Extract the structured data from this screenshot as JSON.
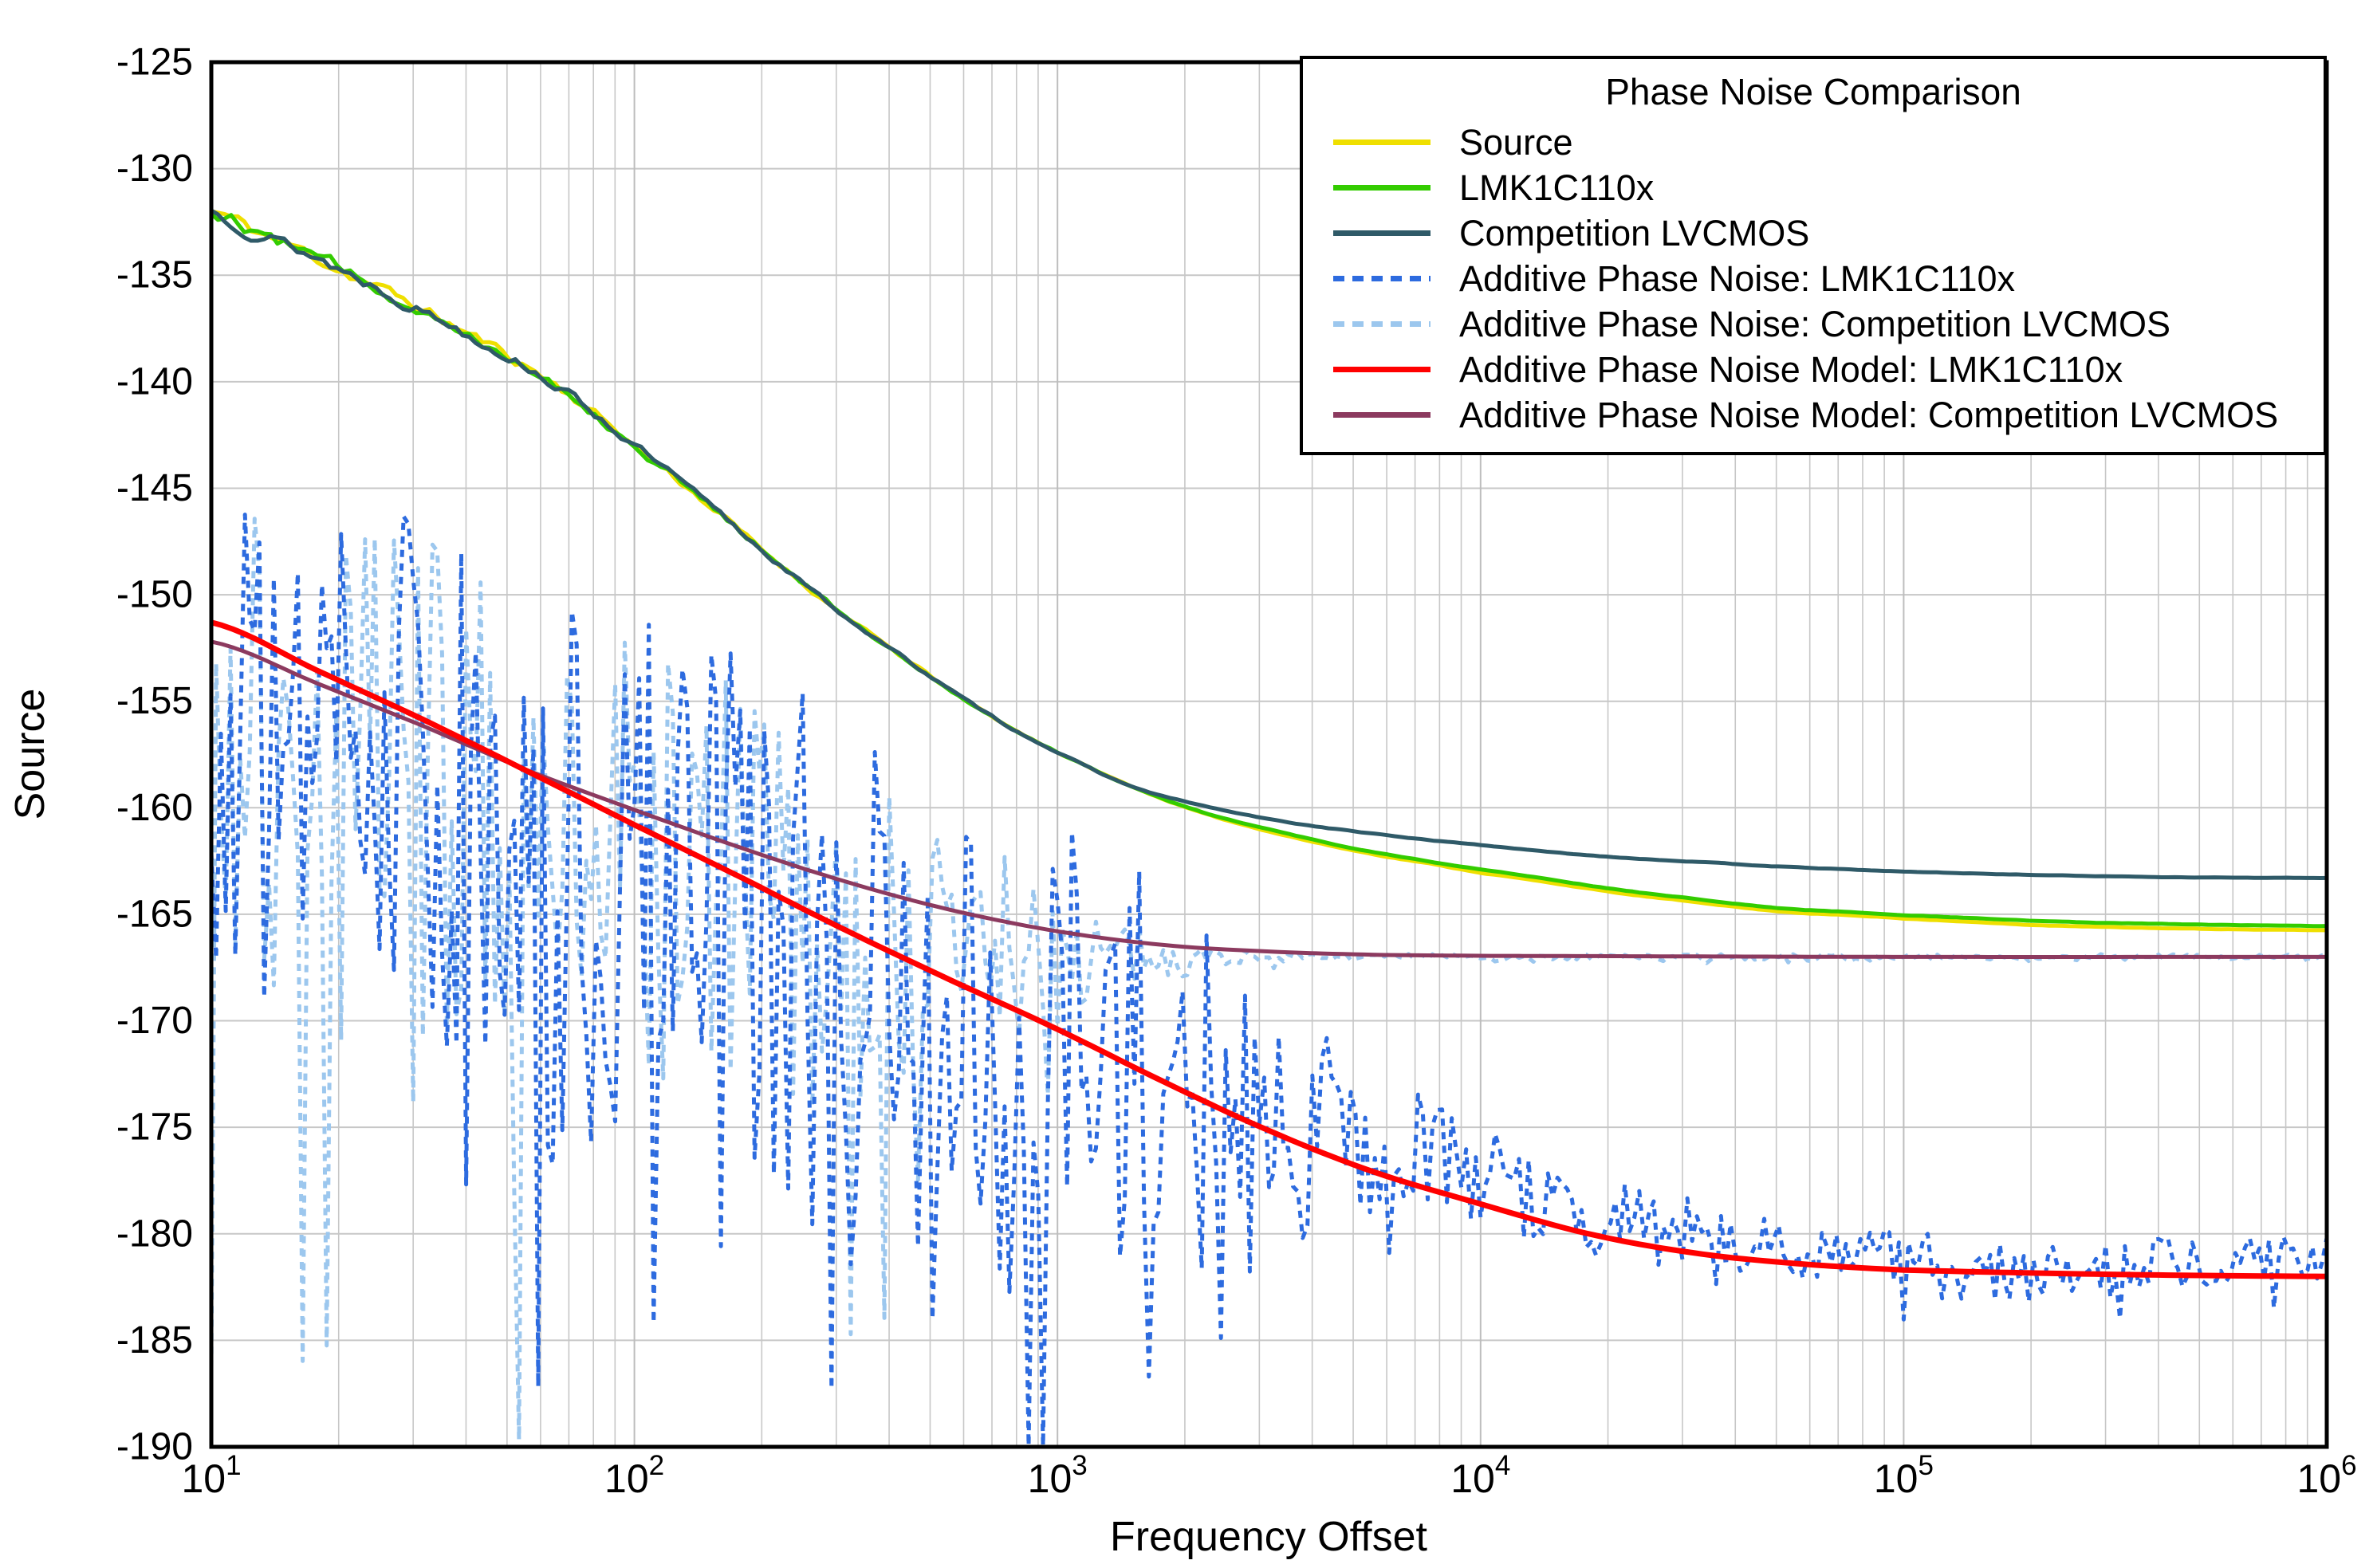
{
  "figure": {
    "x_axis_label": "Frequency Offset",
    "y_axis_label": "Source",
    "x_tick_exponents": [
      1,
      2,
      3,
      4,
      5,
      6
    ],
    "y_ticks": [
      -125,
      -130,
      -135,
      -140,
      -145,
      -150,
      -155,
      -160,
      -165,
      -170,
      -175,
      -180,
      -185,
      -190
    ],
    "y_tick_step": 5,
    "grid_color": "#C7C7C7",
    "grid_major_color": "#BDBDBD",
    "border_color": "#000000",
    "background_color": "#FFFFFF"
  },
  "legend": {
    "title": "Phase Noise Comparison",
    "entries": [
      {
        "label": "Source",
        "color": "#EFDF00",
        "dash": false
      },
      {
        "label": "LMK1C110x",
        "color": "#33CC00",
        "dash": false
      },
      {
        "label": "Competition LVCMOS",
        "color": "#2F5A68",
        "dash": false
      },
      {
        "label": "Additive Phase Noise: LMK1C110x",
        "color": "#2D6BDF",
        "dash": true
      },
      {
        "label": "Additive Phase Noise: Competition LVCMOS",
        "color": "#9CC7EE",
        "dash": true
      },
      {
        "label": "Additive Phase Noise Model: LMK1C110x",
        "color": "#FF0000",
        "dash": false
      },
      {
        "label": "Additive Phase Noise Model: Competition LVCMOS",
        "color": "#8C3A5F",
        "dash": false
      }
    ]
  },
  "chart_data": {
    "type": "line",
    "x_scale": "log",
    "title": "Phase Noise Comparison",
    "xlabel": "Frequency Offset",
    "ylabel": "Source",
    "xlim": [
      10,
      1000000
    ],
    "ylim": [
      -190,
      -125
    ],
    "grid": true,
    "legend_position": "top-right",
    "series": [
      {
        "name": "Additive Phase Noise: Competition LVCMOS",
        "slug": "additive-phase-noise-competition-lvcmos",
        "color": "#9CC7EE",
        "width": 5,
        "dash": "9 8",
        "seed": 7,
        "noise_mode": "hash",
        "dip_prob": 0.15,
        "steps_per_decade": 88,
        "points": [
          [
            10,
            -158
          ],
          [
            20,
            -159
          ],
          [
            40,
            -161
          ],
          [
            80,
            -162
          ],
          [
            150,
            -163.5
          ],
          [
            300,
            -165.5
          ],
          [
            600,
            -166.5
          ],
          [
            1000,
            -166.8
          ],
          [
            1500,
            -167
          ],
          [
            2500,
            -167
          ],
          [
            10000,
            -167
          ],
          [
            100000,
            -167
          ],
          [
            1000000,
            -167
          ]
        ],
        "noise_amp": [
          [
            10,
            12
          ],
          [
            20,
            13
          ],
          [
            40,
            13
          ],
          [
            80,
            12
          ],
          [
            150,
            11
          ],
          [
            300,
            9
          ],
          [
            600,
            6
          ],
          [
            1000,
            3.5
          ],
          [
            1500,
            1.5
          ],
          [
            2500,
            0.4
          ],
          [
            4000,
            0.15
          ],
          [
            1000000,
            0.12
          ]
        ]
      },
      {
        "name": "Additive Phase Noise: LMK1C110x",
        "slug": "additive-phase-noise-lmk1c110x",
        "color": "#2D6BDF",
        "width": 5,
        "dash": "9 8",
        "seed": 3,
        "noise_mode": "hash",
        "dip_prob": 0.18,
        "steps_per_decade": 88,
        "points": [
          [
            10,
            -156
          ],
          [
            20,
            -157
          ],
          [
            40,
            -161
          ],
          [
            80,
            -163
          ],
          [
            150,
            -164
          ],
          [
            300,
            -168
          ],
          [
            600,
            -170
          ],
          [
            1000,
            -171
          ],
          [
            2000,
            -172.5
          ],
          [
            3500,
            -174
          ],
          [
            6000,
            -175.8
          ],
          [
            10000,
            -177.3
          ],
          [
            20000,
            -179
          ],
          [
            40000,
            -180.3
          ],
          [
            100000,
            -181.2
          ],
          [
            300000,
            -181.4
          ],
          [
            1000000,
            -181.2
          ]
        ],
        "noise_amp": [
          [
            10,
            13
          ],
          [
            20,
            13
          ],
          [
            40,
            13
          ],
          [
            80,
            13
          ],
          [
            150,
            13
          ],
          [
            300,
            13
          ],
          [
            600,
            12
          ],
          [
            1000,
            11
          ],
          [
            2000,
            8
          ],
          [
            3500,
            5
          ],
          [
            6000,
            3.2
          ],
          [
            10000,
            2.4
          ],
          [
            20000,
            1.8
          ],
          [
            40000,
            1.5
          ],
          [
            100000,
            1.3
          ],
          [
            1000000,
            1.2
          ]
        ]
      },
      {
        "name": "Source",
        "slug": "source",
        "color": "#EFDF00",
        "width": 5,
        "dash": null,
        "seed": 11,
        "noise_mode": "walk",
        "steps_per_decade": 64,
        "points": [
          [
            10,
            -132
          ],
          [
            13,
            -133
          ],
          [
            17,
            -134
          ],
          [
            22,
            -135.1
          ],
          [
            30,
            -136.4
          ],
          [
            40,
            -137.7
          ],
          [
            55,
            -139.2
          ],
          [
            75,
            -141
          ],
          [
            100,
            -143
          ],
          [
            140,
            -145.3
          ],
          [
            200,
            -147.9
          ],
          [
            300,
            -150.7
          ],
          [
            450,
            -153.2
          ],
          [
            700,
            -155.7
          ],
          [
            1000,
            -157.4
          ],
          [
            1500,
            -159
          ],
          [
            2200,
            -160.25
          ],
          [
            3300,
            -161.2
          ],
          [
            5000,
            -162
          ],
          [
            7500,
            -162.6
          ],
          [
            10000,
            -163.05
          ],
          [
            15000,
            -163.55
          ],
          [
            22000,
            -164.05
          ],
          [
            33000,
            -164.45
          ],
          [
            50000,
            -164.85
          ],
          [
            75000,
            -165.05
          ],
          [
            100000,
            -165.2
          ],
          [
            200000,
            -165.5
          ],
          [
            400000,
            -165.65
          ],
          [
            1000000,
            -165.75
          ]
        ],
        "noise_amp": [
          [
            10,
            0.45
          ],
          [
            40,
            0.35
          ],
          [
            100,
            0.25
          ],
          [
            300,
            0.12
          ],
          [
            800,
            0.05
          ],
          [
            1500,
            0.02
          ],
          [
            1000000,
            0.01
          ]
        ]
      },
      {
        "name": "LMK1C110x",
        "slug": "lmk1c110x",
        "color": "#33CC00",
        "width": 5,
        "dash": null,
        "seed": 12,
        "noise_mode": "walk",
        "steps_per_decade": 64,
        "points": [
          [
            10,
            -132
          ],
          [
            13,
            -133
          ],
          [
            17,
            -134
          ],
          [
            22,
            -135.1
          ],
          [
            30,
            -136.4
          ],
          [
            40,
            -137.7
          ],
          [
            55,
            -139.2
          ],
          [
            75,
            -141
          ],
          [
            100,
            -143
          ],
          [
            140,
            -145.3
          ],
          [
            200,
            -147.9
          ],
          [
            300,
            -150.7
          ],
          [
            450,
            -153.2
          ],
          [
            700,
            -155.7
          ],
          [
            1000,
            -157.4
          ],
          [
            1500,
            -159
          ],
          [
            2200,
            -160.2
          ],
          [
            3300,
            -161.1
          ],
          [
            5000,
            -161.9
          ],
          [
            7500,
            -162.5
          ],
          [
            10000,
            -162.9
          ],
          [
            15000,
            -163.4
          ],
          [
            22000,
            -163.9
          ],
          [
            33000,
            -164.3
          ],
          [
            50000,
            -164.7
          ],
          [
            75000,
            -164.9
          ],
          [
            100000,
            -165.05
          ],
          [
            200000,
            -165.3
          ],
          [
            400000,
            -165.45
          ],
          [
            1000000,
            -165.55
          ]
        ],
        "noise_amp": [
          [
            10,
            0.45
          ],
          [
            40,
            0.35
          ],
          [
            100,
            0.25
          ],
          [
            300,
            0.12
          ],
          [
            800,
            0.05
          ],
          [
            1500,
            0.02
          ],
          [
            1000000,
            0.01
          ]
        ]
      },
      {
        "name": "Competition LVCMOS",
        "slug": "competition-lvcmos",
        "color": "#2F5A68",
        "width": 5,
        "dash": null,
        "seed": 13,
        "noise_mode": "walk",
        "steps_per_decade": 64,
        "points": [
          [
            10,
            -132
          ],
          [
            13,
            -133
          ],
          [
            17,
            -134
          ],
          [
            22,
            -135.1
          ],
          [
            30,
            -136.4
          ],
          [
            40,
            -137.7
          ],
          [
            55,
            -139.2
          ],
          [
            75,
            -141
          ],
          [
            100,
            -143
          ],
          [
            140,
            -145.3
          ],
          [
            200,
            -147.9
          ],
          [
            300,
            -150.7
          ],
          [
            450,
            -153.2
          ],
          [
            700,
            -155.7
          ],
          [
            1000,
            -157.4
          ],
          [
            1500,
            -159
          ],
          [
            2200,
            -159.9
          ],
          [
            3300,
            -160.6
          ],
          [
            5000,
            -161.1
          ],
          [
            7500,
            -161.5
          ],
          [
            10000,
            -161.75
          ],
          [
            15000,
            -162.1
          ],
          [
            22000,
            -162.35
          ],
          [
            33000,
            -162.55
          ],
          [
            50000,
            -162.75
          ],
          [
            75000,
            -162.9
          ],
          [
            100000,
            -163
          ],
          [
            200000,
            -163.15
          ],
          [
            400000,
            -163.25
          ],
          [
            1000000,
            -163.3
          ]
        ],
        "noise_amp": [
          [
            10,
            0.45
          ],
          [
            40,
            0.35
          ],
          [
            100,
            0.25
          ],
          [
            300,
            0.12
          ],
          [
            800,
            0.05
          ],
          [
            1500,
            0.02
          ],
          [
            1000000,
            0.01
          ]
        ]
      },
      {
        "name": "Additive Phase Noise Model: Competition LVCMOS",
        "slug": "additive-phase-noise-model-competition-lvcmos",
        "color": "#8C3A5F",
        "width": 5,
        "dash": null,
        "seed": 1,
        "noise_mode": "none",
        "steps_per_decade": 40,
        "points": [
          [
            10,
            -152.2
          ],
          [
            18,
            -154.2
          ],
          [
            32,
            -156.2
          ],
          [
            56,
            -158.25
          ],
          [
            100,
            -160.1
          ],
          [
            180,
            -161.9
          ],
          [
            320,
            -163.5
          ],
          [
            560,
            -164.8
          ],
          [
            1000,
            -165.8
          ],
          [
            1800,
            -166.45
          ],
          [
            3200,
            -166.75
          ],
          [
            5600,
            -166.9
          ],
          [
            10000,
            -166.95
          ],
          [
            100000,
            -167
          ],
          [
            1000000,
            -167
          ]
        ],
        "noise_amp": []
      },
      {
        "name": "Additive Phase Noise Model: LMK1C110x",
        "slug": "additive-phase-noise-model-lmk1c110x",
        "color": "#FF0000",
        "width": 7,
        "dash": null,
        "seed": 1,
        "noise_mode": "none",
        "steps_per_decade": 40,
        "points": [
          [
            10,
            -151.3
          ],
          [
            18,
            -153.6
          ],
          [
            32,
            -155.9
          ],
          [
            56,
            -158.3
          ],
          [
            100,
            -160.8
          ],
          [
            180,
            -163.3
          ],
          [
            320,
            -165.8
          ],
          [
            560,
            -168.1
          ],
          [
            1000,
            -170.4
          ],
          [
            1800,
            -172.9
          ],
          [
            3200,
            -175.2
          ],
          [
            5600,
            -177.1
          ],
          [
            10000,
            -178.6
          ],
          [
            18000,
            -180
          ],
          [
            32000,
            -180.9
          ],
          [
            56000,
            -181.4
          ],
          [
            100000,
            -181.7
          ],
          [
            300000,
            -181.9
          ],
          [
            1000000,
            -182
          ]
        ],
        "noise_amp": []
      }
    ]
  }
}
